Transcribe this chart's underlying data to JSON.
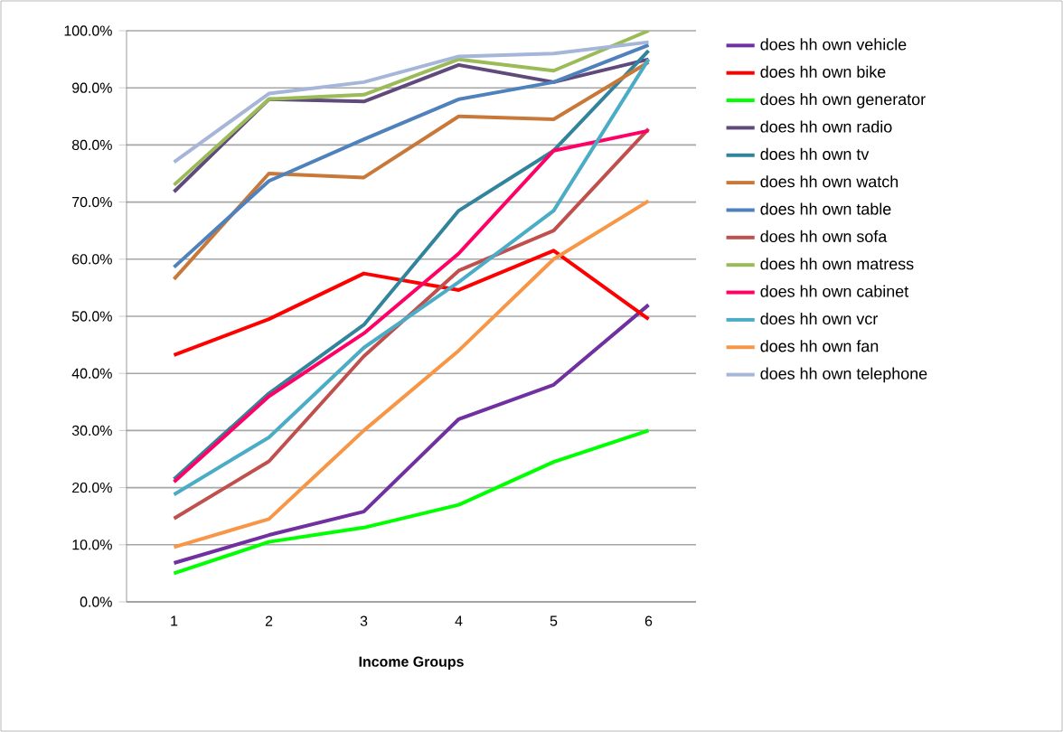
{
  "chart_data": {
    "type": "line",
    "xlabel": "Income Groups",
    "categories": [
      "1",
      "2",
      "3",
      "4",
      "5",
      "6"
    ],
    "ylim": [
      0,
      100
    ],
    "yticks": [
      {
        "value": 0,
        "label": "0.0%"
      },
      {
        "value": 10,
        "label": "10.0%"
      },
      {
        "value": 20,
        "label": "20.0%"
      },
      {
        "value": 30,
        "label": "30.0%"
      },
      {
        "value": 40,
        "label": "40.0%"
      },
      {
        "value": 50,
        "label": "50.0%"
      },
      {
        "value": 60,
        "label": "60.0%"
      },
      {
        "value": 70,
        "label": "70.0%"
      },
      {
        "value": 80,
        "label": "80.0%"
      },
      {
        "value": 90,
        "label": "90.0%"
      },
      {
        "value": 100,
        "label": "100.0%"
      }
    ],
    "grid": "y",
    "legend": "right",
    "marker": "none",
    "series": [
      {
        "name": "does hh own vehicle",
        "color": "#7030a0",
        "values": [
          6.8,
          11.7,
          15.8,
          32,
          38,
          52
        ]
      },
      {
        "name": "does hh own bike",
        "color": "#ff0000",
        "values": [
          43.2,
          49.5,
          57.5,
          54.6,
          61.5,
          49.5
        ]
      },
      {
        "name": "does hh own generator",
        "color": "#00ff00",
        "values": [
          5,
          10.5,
          13,
          17,
          24.5,
          30
        ]
      },
      {
        "name": "does hh own radio",
        "color": "#604a7b",
        "values": [
          71.8,
          88,
          87.6,
          94,
          91,
          95
        ]
      },
      {
        "name": "does hh own tv",
        "color": "#31849b",
        "values": [
          21.5,
          36.5,
          48.5,
          68.5,
          79,
          96.5
        ]
      },
      {
        "name": "does hh own watch",
        "color": "#c8793a",
        "values": [
          56.5,
          75,
          74.3,
          85,
          84.5,
          94.5
        ]
      },
      {
        "name": "does hh own table",
        "color": "#4f81bd",
        "values": [
          58.6,
          73.7,
          81,
          88,
          91,
          97.5
        ]
      },
      {
        "name": "does hh own sofa",
        "color": "#c0504d",
        "values": [
          14.6,
          24.6,
          43,
          58,
          65,
          82.8
        ]
      },
      {
        "name": "does hh own matress",
        "color": "#9bbb59",
        "values": [
          73,
          88,
          88.8,
          95,
          93,
          100
        ]
      },
      {
        "name": "does hh own cabinet",
        "color": "#ff0066",
        "values": [
          21,
          36,
          47,
          61,
          79,
          82.5
        ]
      },
      {
        "name": "does hh own vcr",
        "color": "#4bacc6",
        "values": [
          18.8,
          28.8,
          44.5,
          56,
          68.5,
          95
        ]
      },
      {
        "name": "does hh own fan",
        "color": "#f79646",
        "values": [
          9.6,
          14.5,
          30,
          44,
          60,
          70.2
        ]
      },
      {
        "name": "does hh own telephone",
        "color": "#a6b6d8",
        "values": [
          77,
          89,
          91,
          95.5,
          96,
          98
        ]
      }
    ]
  }
}
